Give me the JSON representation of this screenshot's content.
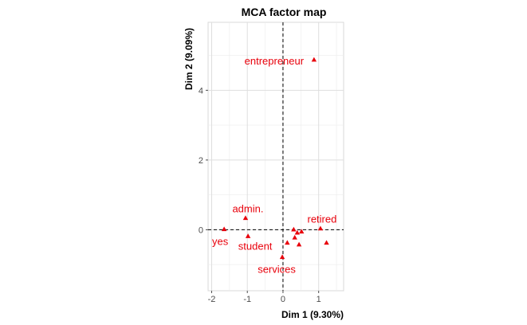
{
  "chart_data": {
    "type": "scatter",
    "title": "MCA factor map",
    "xlabel": "Dim 1 (9.30%)",
    "ylabel": "Dim 2 (9.09%)",
    "xlim": [
      -2.1,
      1.7
    ],
    "ylim": [
      -1.75,
      5.95
    ],
    "xticks": [
      -2,
      -1,
      0,
      1
    ],
    "yticks": [
      0,
      2,
      4
    ],
    "grid": true,
    "marker_color": "#e8000b",
    "reference_lines": [
      {
        "axis": "x",
        "value": 0,
        "style": "dashed"
      },
      {
        "axis": "y",
        "value": 0,
        "style": "dashed"
      }
    ],
    "points": [
      {
        "x": 0.87,
        "y": 4.88,
        "label": "entrepreneur"
      },
      {
        "x": -1.05,
        "y": 0.34,
        "label": "admin."
      },
      {
        "x": 1.05,
        "y": 0.04,
        "label": "retired"
      },
      {
        "x": -1.65,
        "y": 0.02,
        "label": "yes"
      },
      {
        "x": -0.98,
        "y": -0.18,
        "label": "student"
      },
      {
        "x": -0.02,
        "y": -0.78,
        "label": "services"
      },
      {
        "x": 0.3,
        "y": 0.01,
        "label": ""
      },
      {
        "x": 0.4,
        "y": -0.08,
        "label": ""
      },
      {
        "x": 0.52,
        "y": -0.05,
        "label": ""
      },
      {
        "x": 0.33,
        "y": -0.22,
        "label": ""
      },
      {
        "x": 0.12,
        "y": -0.37,
        "label": ""
      },
      {
        "x": 0.45,
        "y": -0.42,
        "label": ""
      },
      {
        "x": 1.22,
        "y": -0.37,
        "label": ""
      }
    ]
  }
}
